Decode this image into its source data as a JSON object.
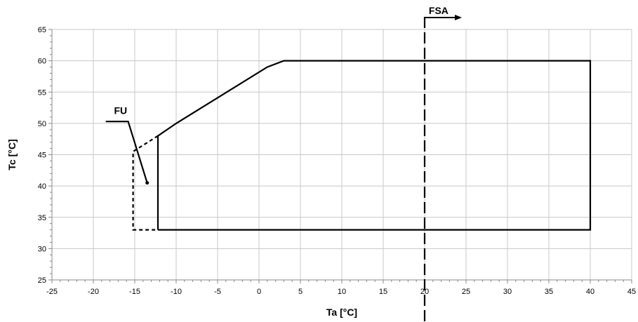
{
  "chart_data": {
    "type": "line",
    "title": "",
    "xlabel": "Ta [°C]",
    "ylabel": "Tc [°C]",
    "xlim": [
      -25,
      45
    ],
    "ylim": [
      25,
      65
    ],
    "xticks": [
      -25,
      -20,
      -15,
      -10,
      -5,
      0,
      5,
      10,
      15,
      20,
      25,
      30,
      35,
      40,
      45
    ],
    "yticks": [
      25,
      30,
      35,
      40,
      45,
      50,
      55,
      60,
      65
    ],
    "grid": true,
    "legend": "none",
    "series": [
      {
        "style": "solid",
        "points": [
          [
            -12.2,
            33
          ],
          [
            40,
            33
          ],
          [
            40,
            60
          ],
          [
            3,
            60
          ],
          [
            1,
            59
          ],
          [
            -10,
            50
          ],
          [
            -12.2,
            48
          ],
          [
            -12.2,
            33
          ]
        ]
      },
      {
        "style": "dashed",
        "points": [
          [
            -12.2,
            48
          ],
          [
            -15.2,
            45.5
          ],
          [
            -15.2,
            33
          ],
          [
            -12.2,
            33
          ]
        ]
      },
      {
        "style": "solid",
        "points": [
          [
            -18.5,
            50.3
          ],
          [
            -15.8,
            50.3
          ],
          [
            -13.5,
            40.5
          ]
        ]
      }
    ],
    "reference_lines": [
      {
        "x": 20,
        "style": "long-dash"
      }
    ],
    "annotations": [
      {
        "text": "FU",
        "x": -17.5,
        "y": 51.5
      },
      {
        "text": "FSA",
        "x": 20.5,
        "y": 67.5,
        "arrow_to_x": 24.5
      }
    ]
  }
}
